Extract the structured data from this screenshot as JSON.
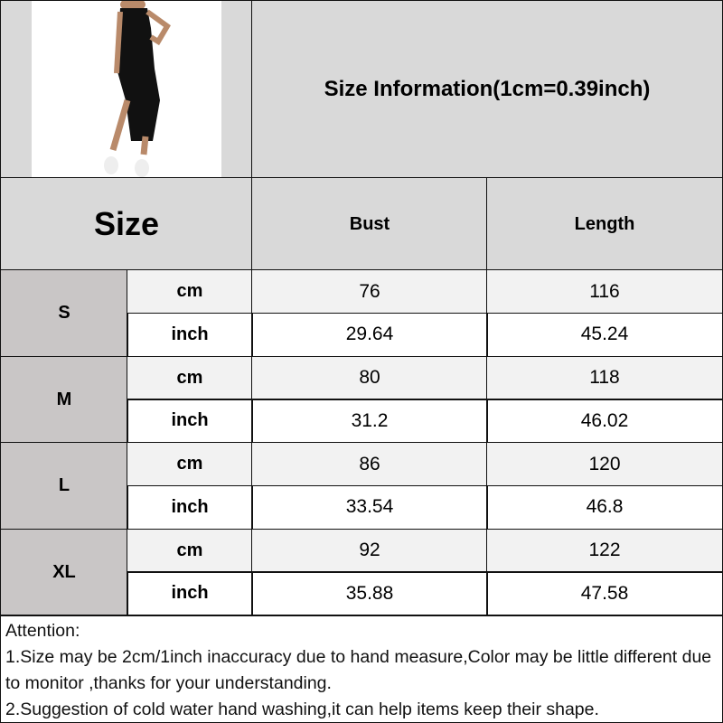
{
  "product_image": {
    "alt": "black-slip-midi-dress-model-photo"
  },
  "title": "Size Information(1cm=0.39inch)",
  "headers": {
    "size": "Size",
    "bust": "Bust",
    "length": "Length"
  },
  "rows": [
    {
      "size": "S",
      "cm": {
        "unit": "cm",
        "bust": "76",
        "length": "116"
      },
      "inch": {
        "unit": "inch",
        "bust": "29.64",
        "length": "45.24"
      }
    },
    {
      "size": "M",
      "cm": {
        "unit": "cm",
        "bust": "80",
        "length": "118"
      },
      "inch": {
        "unit": "inch",
        "bust": "31.2",
        "length": "46.02"
      }
    },
    {
      "size": "L",
      "cm": {
        "unit": "cm",
        "bust": "86",
        "length": "120"
      },
      "inch": {
        "unit": "inch",
        "bust": "33.54",
        "length": "46.8"
      }
    },
    {
      "size": "XL",
      "cm": {
        "unit": "cm",
        "bust": "92",
        "length": "122"
      },
      "inch": {
        "unit": "inch",
        "bust": "35.88",
        "length": "47.58"
      }
    }
  ],
  "notes": {
    "heading": "Attention:",
    "line1": "1.Size may be 2cm/1inch inaccuracy due to hand measure,Color may be little different due to monitor ,thanks for your understanding.",
    "line2": "2.Suggestion of cold water hand washing,it can help items keep their shape."
  }
}
